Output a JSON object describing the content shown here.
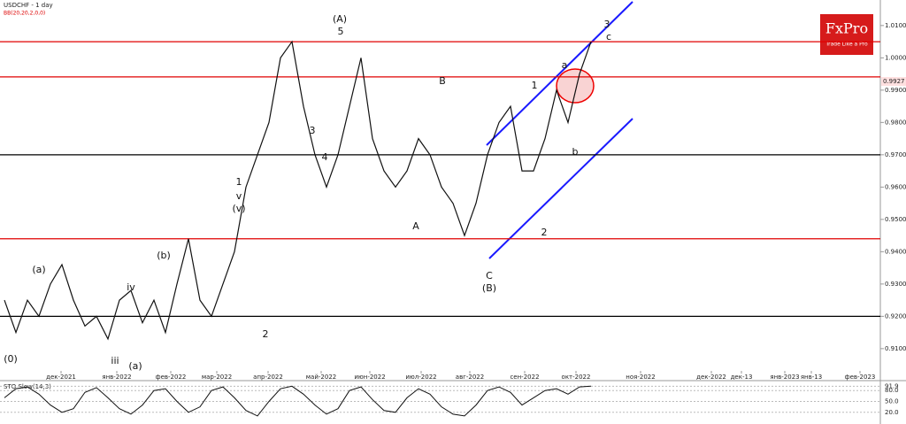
{
  "header": {
    "title": "USDCHF - 1 day",
    "indicator": "BB(20,20,2,0,0)"
  },
  "logo": {
    "name": "FxPro",
    "slogan": "Trade Like a Pro"
  },
  "chart_data": {
    "type": "line",
    "series": [
      {
        "name": "USDCHF",
        "color": "#111111",
        "values": [
          0.925,
          0.915,
          0.925,
          0.92,
          0.93,
          0.936,
          0.925,
          0.917,
          0.92,
          0.913,
          0.925,
          0.928,
          0.918,
          0.925,
          0.915,
          0.93,
          0.944,
          0.925,
          0.92,
          0.93,
          0.94,
          0.96,
          0.97,
          0.98,
          1.0,
          1.005,
          0.985,
          0.97,
          0.96,
          0.97,
          0.985,
          1.0,
          0.975,
          0.965,
          0.96,
          0.965,
          0.975,
          0.97,
          0.96,
          0.955,
          0.945,
          0.955,
          0.97,
          0.98,
          0.985,
          0.965,
          0.965,
          0.975,
          0.99,
          0.98,
          0.995,
          1.005
        ]
      }
    ],
    "ylim": [
      0.9001,
      1.0179
    ],
    "yticks": [
      {
        "value": 1.01,
        "label": "1.0100"
      },
      {
        "value": 1.0,
        "label": "1.0000"
      },
      {
        "value": 0.99,
        "label": "0.9900"
      },
      {
        "value": 0.98,
        "label": "0.9800"
      },
      {
        "value": 0.97,
        "label": "0.9700"
      },
      {
        "value": 0.96,
        "label": "0.9600"
      },
      {
        "value": 0.95,
        "label": "0.9500"
      },
      {
        "value": 0.94,
        "label": "0.9400"
      },
      {
        "value": 0.93,
        "label": "0.9300"
      },
      {
        "value": 0.92,
        "label": "0.9200"
      },
      {
        "value": 0.91,
        "label": "0.9100"
      }
    ],
    "current_price": {
      "value": 0.9927,
      "label": "0.9927"
    },
    "levels": [
      {
        "value": 1.005,
        "color": "#e00000"
      },
      {
        "value": 0.9941,
        "color": "#e00000"
      },
      {
        "value": 0.97,
        "color": "#000000"
      },
      {
        "value": 0.944,
        "color": "#e00000"
      },
      {
        "value": 0.92,
        "color": "#000000"
      }
    ],
    "x_labels": [
      "дек-2021",
      "янв-2022",
      "фев-2022",
      "мар-2022",
      "апр-2022",
      "май-2022",
      "июн-2022",
      "июл-2022",
      "авг-2022",
      "сен-2022",
      "окт-2022",
      "ноя-2022",
      "дек-2022",
      "дек-13",
      "янв-2023",
      "янв-13",
      "фев-2023"
    ],
    "wave_labels": [
      "(A)",
      "5",
      "3",
      "4",
      "1",
      "v",
      "(v)",
      "2",
      "(0)",
      "(a)",
      "(b)",
      "iv",
      "iii",
      "(a)",
      "A",
      "B",
      "C",
      "(B)",
      "1",
      "2",
      "3",
      "c",
      "a",
      "b"
    ],
    "oscillator": {
      "title": "STO Slow(14,3)",
      "ylim": [
        0,
        100
      ],
      "yticks": [
        {
          "value": 91.9,
          "label": "91.9"
        },
        {
          "value": 80,
          "label": "80.0"
        },
        {
          "value": 50,
          "label": "50.0"
        },
        {
          "value": 20,
          "label": "20.0"
        }
      ],
      "values": [
        60,
        85,
        90,
        70,
        40,
        20,
        30,
        75,
        88,
        60,
        30,
        15,
        40,
        80,
        85,
        50,
        20,
        35,
        80,
        90,
        60,
        25,
        10,
        50,
        85,
        92,
        70,
        40,
        15,
        30,
        80,
        90,
        55,
        25,
        20,
        60,
        85,
        70,
        35,
        15,
        10,
        40,
        80,
        90,
        75,
        40,
        60,
        80,
        85,
        70,
        90,
        92
      ]
    }
  }
}
